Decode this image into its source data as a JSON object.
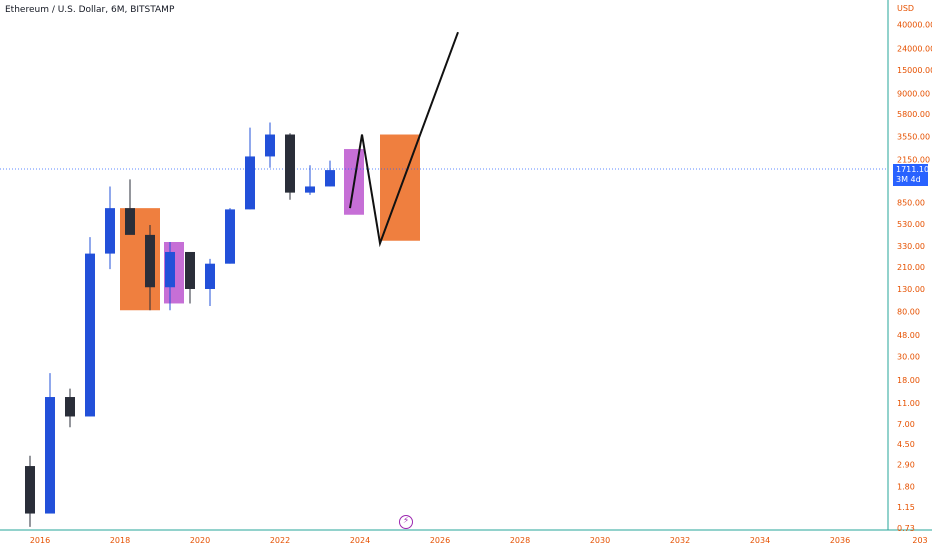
{
  "header": {
    "title": "Ethereum / U.S. Dollar, 6M, BITSTAMP"
  },
  "price_tag": {
    "price": "1711.10",
    "countdown": "3M 4d"
  },
  "colors": {
    "up": "#2250d9",
    "down": "#2a2e39",
    "orange_zone": "#ef7f3f",
    "purple_zone": "#c66fd6",
    "axis_text": "#e65100",
    "axis_line": "#26a69a"
  },
  "chart_data": {
    "type": "candlestick",
    "y_scale": "log",
    "y_axis_label": "USD",
    "y_ticks": [
      "40000.00",
      "24000.00",
      "15000.00",
      "9000.00",
      "5800.00",
      "3550.00",
      "2150.00",
      "850.00",
      "530.00",
      "330.00",
      "210.00",
      "130.00",
      "80.00",
      "48.00",
      "30.00",
      "18.00",
      "11.00",
      "7.00",
      "4.50",
      "2.90",
      "1.80",
      "1.15",
      "0.73"
    ],
    "x_ticks": [
      "2016",
      "2018",
      "2020",
      "2022",
      "2024",
      "2026",
      "2028",
      "2030",
      "2032",
      "2034",
      "2036",
      "203"
    ],
    "ylim": [
      0.7,
      55000
    ],
    "xlim": [
      2015.0,
      2037.2
    ],
    "current_price": 1711.1,
    "candles": [
      {
        "t": 2015.75,
        "o": 2.8,
        "h": 3.5,
        "l": 0.75,
        "c": 1.0
      },
      {
        "t": 2016.25,
        "o": 1.0,
        "h": 21.0,
        "l": 1.0,
        "c": 12.5
      },
      {
        "t": 2016.75,
        "o": 12.5,
        "h": 15.0,
        "l": 6.5,
        "c": 8.2
      },
      {
        "t": 2017.25,
        "o": 8.2,
        "h": 400,
        "l": 8.2,
        "c": 280
      },
      {
        "t": 2017.75,
        "o": 280,
        "h": 1200,
        "l": 200,
        "c": 750
      },
      {
        "t": 2018.25,
        "o": 750,
        "h": 1400,
        "l": 450,
        "c": 420
      },
      {
        "t": 2018.75,
        "o": 420,
        "h": 520,
        "l": 82,
        "c": 135
      },
      {
        "t": 2019.25,
        "o": 135,
        "h": 360,
        "l": 82,
        "c": 290
      },
      {
        "t": 2019.75,
        "o": 290,
        "h": 290,
        "l": 95,
        "c": 130
      },
      {
        "t": 2020.25,
        "o": 130,
        "h": 250,
        "l": 90,
        "c": 225
      },
      {
        "t": 2020.75,
        "o": 225,
        "h": 750,
        "l": 225,
        "c": 730
      },
      {
        "t": 2021.25,
        "o": 730,
        "h": 4300,
        "l": 730,
        "c": 2300
      },
      {
        "t": 2021.75,
        "o": 2300,
        "h": 4800,
        "l": 1800,
        "c": 3700
      },
      {
        "t": 2022.25,
        "o": 3700,
        "h": 3800,
        "l": 900,
        "c": 1050
      },
      {
        "t": 2022.75,
        "o": 1050,
        "h": 1900,
        "l": 1000,
        "c": 1200
      },
      {
        "t": 2023.25,
        "o": 1200,
        "h": 2100,
        "l": 1200,
        "c": 1711
      }
    ],
    "zones": [
      {
        "name": "",
        "color": "orange",
        "x0": 2018.0,
        "x1": 2019.0,
        "y0": 82,
        "y1": 750
      },
      {
        "name": "",
        "color": "purple",
        "x0": 2019.1,
        "x1": 2019.6,
        "y0": 95,
        "y1": 360
      },
      {
        "name": "",
        "color": "purple",
        "x0": 2023.6,
        "x1": 2024.1,
        "y0": 650,
        "y1": 2700
      },
      {
        "name": "",
        "color": "orange",
        "x0": 2024.5,
        "x1": 2025.5,
        "y0": 370,
        "y1": 3700
      }
    ],
    "projection": [
      {
        "t": 2023.75,
        "v": 750
      },
      {
        "t": 2024.05,
        "v": 3700
      },
      {
        "t": 2024.5,
        "v": 350
      },
      {
        "t": 2026.45,
        "v": 34000
      }
    ]
  }
}
